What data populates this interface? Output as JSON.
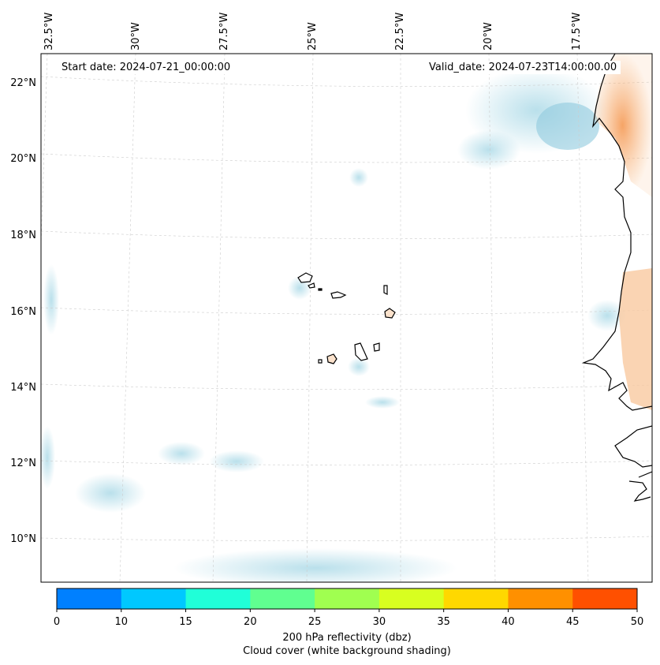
{
  "map": {
    "start_date": "Start date: 2024-07-21_00:00:00",
    "valid_date": "Valid_date: 2024-07-23T14:00:00.00",
    "lon_labels": [
      "32.5°W",
      "30°W",
      "27.5°W",
      "25°W",
      "22.5°W",
      "20°W",
      "17.5°W"
    ],
    "lat_labels": [
      "22°N",
      "20°N",
      "18°N",
      "16°N",
      "14°N",
      "12°N",
      "10°N"
    ],
    "land_highlight_color": "#f7a05a",
    "cloud_color": "#9fd3e3"
  },
  "colorbar": {
    "ticks": [
      "0",
      "10",
      "15",
      "20",
      "25",
      "30",
      "35",
      "40",
      "45",
      "50"
    ],
    "colors": [
      "#0080ff",
      "#00c8ff",
      "#20ffd8",
      "#60ff90",
      "#a0ff50",
      "#d8ff20",
      "#ffd800",
      "#ff9000",
      "#ff5000"
    ],
    "label1": "200 hPa reflectivity (dbz)",
    "label2": "Cloud cover (white background shading)"
  }
}
